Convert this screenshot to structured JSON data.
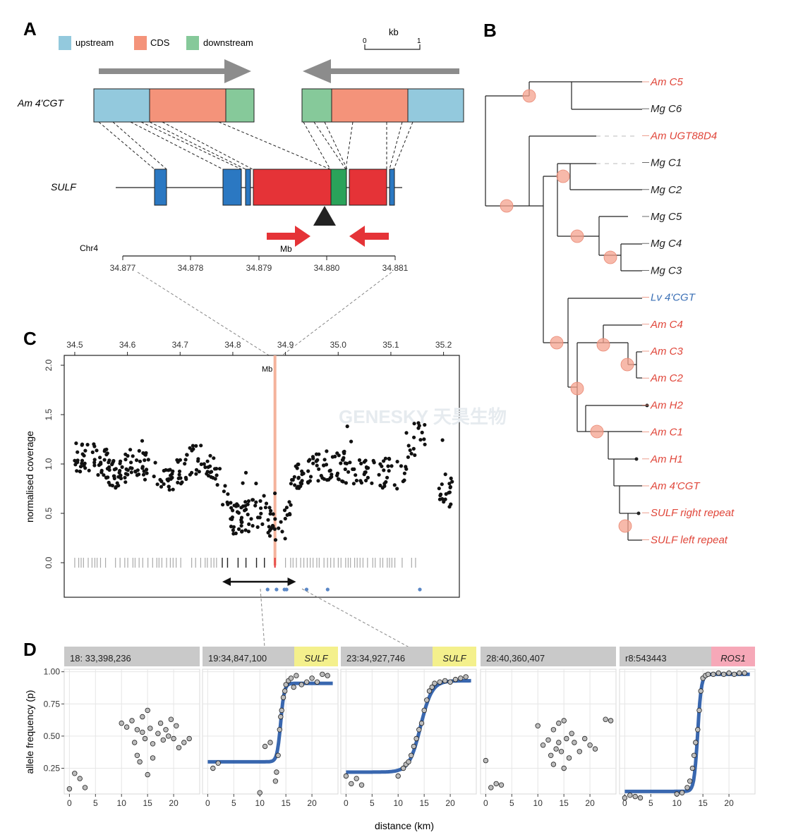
{
  "panels": {
    "a": "A",
    "b": "B",
    "c": "C",
    "d": "D"
  },
  "panelA": {
    "legend": [
      {
        "label": "upstream",
        "color": "#93c9dd"
      },
      {
        "label": "CDS",
        "color": "#f4937a"
      },
      {
        "label": "downstream",
        "color": "#86c99a"
      }
    ],
    "scalebar": {
      "title": "kb",
      "start": "0",
      "end": "1"
    },
    "gene_am": "Am 4'CGT",
    "gene_sulf": "SULF",
    "chrom_label": "Chr4",
    "axis_unit": "Mb",
    "axis_ticks": [
      "34.877",
      "34.878",
      "34.879",
      "34.880",
      "34.881"
    ]
  },
  "panelB": {
    "leaves": [
      {
        "label": "Am C5",
        "color": "#e0463a"
      },
      {
        "label": "Mg C6",
        "color": "#222222"
      },
      {
        "label": "Am UGT88D4",
        "color": "#e0463a"
      },
      {
        "label": "Mg C1",
        "color": "#222222"
      },
      {
        "label": "Mg C2",
        "color": "#222222"
      },
      {
        "label": "Mg C5",
        "color": "#222222"
      },
      {
        "label": "Mg C4",
        "color": "#222222"
      },
      {
        "label": "Mg C3",
        "color": "#222222"
      },
      {
        "label": "Lv 4'CGT",
        "color": "#3a6fb5"
      },
      {
        "label": "Am C4",
        "color": "#e0463a"
      },
      {
        "label": "Am C3",
        "color": "#e0463a"
      },
      {
        "label": "Am C2",
        "color": "#e0463a"
      },
      {
        "label": "Am H2",
        "color": "#e0463a"
      },
      {
        "label": "Am C1",
        "color": "#e0463a"
      },
      {
        "label": "Am H1",
        "color": "#e0463a"
      },
      {
        "label": "Am 4'CGT",
        "color": "#e0463a"
      },
      {
        "label": "SULF right repeat",
        "color": "#e0463a"
      },
      {
        "label": "SULF left repeat",
        "color": "#e0463a"
      }
    ]
  },
  "panelC": {
    "ylabel": "normalised coverage",
    "mb_label": "Mb",
    "watermark": "GENESKY 天昊生物"
  },
  "panelD": {
    "ylabel": "allele frequency (p)",
    "xlabel": "distance (km)",
    "facets": [
      {
        "title": "18: 33,398,236",
        "tag": "",
        "tag_color": ""
      },
      {
        "title": "19:34,847,100",
        "tag": "SULF",
        "tag_color": "#f4f08c"
      },
      {
        "title": "23:34,927,746",
        "tag": "SULF",
        "tag_color": "#f4f08c"
      },
      {
        "title": "28:40,360,407",
        "tag": "",
        "tag_color": ""
      },
      {
        "title": "r8:543443",
        "tag": "ROS1",
        "tag_color": "#f6a8b8"
      }
    ]
  },
  "chart_data": [
    {
      "type": "scatter",
      "x_axis_ticks": [
        34.5,
        34.6,
        34.7,
        34.8,
        34.9,
        35.0,
        35.1,
        35.2
      ],
      "xlim": [
        34.48,
        35.23
      ],
      "y_axis_ticks": [
        0.0,
        0.5,
        1.0,
        1.5,
        2.0
      ],
      "ylim": [
        -0.35,
        2.1
      ],
      "ylabel": "normalised coverage",
      "marker_x": 34.88,
      "marker_label": "Mb",
      "profile": {
        "x": [
          34.5,
          34.52,
          34.54,
          34.56,
          34.58,
          34.6,
          34.62,
          34.64,
          34.66,
          34.68,
          34.7,
          34.72,
          34.74,
          34.76,
          34.78,
          34.8,
          34.82,
          34.84,
          34.86,
          34.88,
          34.9,
          34.92,
          34.94,
          34.96,
          34.98,
          35.0,
          35.02,
          35.04,
          35.06,
          35.08,
          35.1,
          35.12,
          35.14,
          35.16,
          35.18,
          35.2,
          35.22
        ],
        "y": [
          1.05,
          1.1,
          1.05,
          1.0,
          0.85,
          1.0,
          1.05,
          0.95,
          0.9,
          0.85,
          0.9,
          1.05,
          1.05,
          1.0,
          0.75,
          0.45,
          0.45,
          0.5,
          0.55,
          0.3,
          0.4,
          0.9,
          0.95,
          0.95,
          1.0,
          1.0,
          0.95,
          0.95,
          0.9,
          0.9,
          0.9,
          0.9,
          1.2,
          1.45,
          0.8,
          0.75,
          0.7
        ]
      },
      "black_ticks_range": [
        34.78,
        34.86
      ],
      "grey_ticks_ranges": [
        [
          34.5,
          34.77
        ],
        [
          34.9,
          35.15
        ]
      ],
      "arrow_range": [
        34.78,
        34.92
      ],
      "blue_points_x": [
        34.866,
        34.883,
        34.898,
        34.902,
        34.94,
        34.98,
        35.155
      ]
    },
    {
      "type": "scatter",
      "facet": "18: 33,398,236",
      "xlim": [
        -1,
        25
      ],
      "ylim": [
        0.05,
        1.02
      ],
      "x_axis_ticks": [
        0,
        5,
        10,
        15,
        20
      ],
      "y_axis_ticks": [
        0.25,
        0.5,
        0.75,
        1.0
      ],
      "points": [
        [
          0,
          0.09
        ],
        [
          1,
          0.21
        ],
        [
          2,
          0.17
        ],
        [
          3,
          0.1
        ],
        [
          10,
          0.6
        ],
        [
          11,
          0.57
        ],
        [
          12,
          0.62
        ],
        [
          12.5,
          0.45
        ],
        [
          13,
          0.55
        ],
        [
          13,
          0.35
        ],
        [
          13.5,
          0.3
        ],
        [
          14,
          0.53
        ],
        [
          14,
          0.65
        ],
        [
          14.5,
          0.48
        ],
        [
          15,
          0.2
        ],
        [
          15,
          0.7
        ],
        [
          15.5,
          0.56
        ],
        [
          16,
          0.44
        ],
        [
          16,
          0.33
        ],
        [
          17,
          0.52
        ],
        [
          17.5,
          0.6
        ],
        [
          18,
          0.47
        ],
        [
          18.5,
          0.55
        ],
        [
          19,
          0.5
        ],
        [
          19.5,
          0.63
        ],
        [
          20,
          0.48
        ],
        [
          20.5,
          0.58
        ],
        [
          21,
          0.41
        ],
        [
          22,
          0.45
        ],
        [
          23,
          0.48
        ]
      ]
    },
    {
      "type": "scatter",
      "facet": "19:34,847,100",
      "xlim": [
        -1,
        25
      ],
      "ylim": [
        0.05,
        1.02
      ],
      "x_axis_ticks": [
        0,
        5,
        10,
        15,
        20
      ],
      "y_axis_ticks": [
        0.25,
        0.5,
        0.75,
        1.0
      ],
      "fit": {
        "low": 0.3,
        "high": 0.91,
        "mid": 14.0,
        "width": 0.35
      },
      "points": [
        [
          1,
          0.25
        ],
        [
          2,
          0.29
        ],
        [
          10,
          0.06
        ],
        [
          11,
          0.42
        ],
        [
          12,
          0.45
        ],
        [
          13,
          0.15
        ],
        [
          13.2,
          0.22
        ],
        [
          13.5,
          0.35
        ],
        [
          13.8,
          0.55
        ],
        [
          14,
          0.65
        ],
        [
          14.2,
          0.7
        ],
        [
          14.5,
          0.8
        ],
        [
          14.8,
          0.85
        ],
        [
          15,
          0.9
        ],
        [
          15.5,
          0.93
        ],
        [
          16,
          0.95
        ],
        [
          16.5,
          0.88
        ],
        [
          17,
          0.97
        ],
        [
          18,
          0.9
        ],
        [
          19,
          0.92
        ],
        [
          20,
          0.95
        ],
        [
          21,
          0.92
        ],
        [
          22,
          0.98
        ],
        [
          23,
          0.97
        ]
      ]
    },
    {
      "type": "scatter",
      "facet": "23:34,927,746",
      "xlim": [
        -1,
        25
      ],
      "ylim": [
        0.05,
        1.02
      ],
      "x_axis_ticks": [
        0,
        5,
        10,
        15,
        20
      ],
      "y_axis_ticks": [
        0.25,
        0.5,
        0.75,
        1.0
      ],
      "fit": {
        "low": 0.22,
        "high": 0.93,
        "mid": 14.3,
        "width": 1.1
      },
      "points": [
        [
          0,
          0.19
        ],
        [
          1,
          0.13
        ],
        [
          2,
          0.17
        ],
        [
          3,
          0.12
        ],
        [
          10,
          0.19
        ],
        [
          11,
          0.25
        ],
        [
          11.5,
          0.28
        ],
        [
          12,
          0.3
        ],
        [
          12.5,
          0.35
        ],
        [
          13,
          0.42
        ],
        [
          13.5,
          0.48
        ],
        [
          14,
          0.55
        ],
        [
          14.5,
          0.6
        ],
        [
          15,
          0.7
        ],
        [
          15.5,
          0.78
        ],
        [
          16,
          0.85
        ],
        [
          16.5,
          0.88
        ],
        [
          17,
          0.91
        ],
        [
          18,
          0.92
        ],
        [
          19,
          0.93
        ],
        [
          20,
          0.92
        ],
        [
          21,
          0.94
        ],
        [
          22,
          0.95
        ],
        [
          23,
          0.96
        ]
      ]
    },
    {
      "type": "scatter",
      "facet": "28:40,360,407",
      "xlim": [
        -1,
        25
      ],
      "ylim": [
        0.05,
        1.02
      ],
      "x_axis_ticks": [
        0,
        5,
        10,
        15,
        20
      ],
      "y_axis_ticks": [
        0.25,
        0.5,
        0.75,
        1.0
      ],
      "points": [
        [
          0,
          0.31
        ],
        [
          1,
          0.1
        ],
        [
          2,
          0.13
        ],
        [
          3,
          0.12
        ],
        [
          10,
          0.58
        ],
        [
          11,
          0.43
        ],
        [
          12,
          0.47
        ],
        [
          12.5,
          0.35
        ],
        [
          13,
          0.55
        ],
        [
          13,
          0.28
        ],
        [
          13.5,
          0.4
        ],
        [
          14,
          0.6
        ],
        [
          14,
          0.45
        ],
        [
          14.5,
          0.38
        ],
        [
          15,
          0.25
        ],
        [
          15,
          0.62
        ],
        [
          15.5,
          0.48
        ],
        [
          16,
          0.33
        ],
        [
          16.5,
          0.52
        ],
        [
          17,
          0.45
        ],
        [
          18,
          0.38
        ],
        [
          19,
          0.48
        ],
        [
          20,
          0.43
        ],
        [
          21,
          0.4
        ],
        [
          23,
          0.63
        ],
        [
          24,
          0.62
        ]
      ]
    },
    {
      "type": "scatter",
      "facet": "r8:543443",
      "xlim": [
        -1,
        25
      ],
      "ylim": [
        0.05,
        1.02
      ],
      "x_axis_ticks": [
        0,
        5,
        10,
        15,
        20
      ],
      "y_axis_ticks": [
        0.25,
        0.5,
        0.75,
        1.0
      ],
      "fit": {
        "low": 0.07,
        "high": 0.98,
        "mid": 14.0,
        "width": 0.35
      },
      "points": [
        [
          0,
          0.02
        ],
        [
          1,
          0.04
        ],
        [
          2,
          0.03
        ],
        [
          3,
          0.02
        ],
        [
          10,
          0.05
        ],
        [
          11,
          0.06
        ],
        [
          12,
          0.1
        ],
        [
          12.5,
          0.15
        ],
        [
          13,
          0.25
        ],
        [
          13.3,
          0.35
        ],
        [
          13.6,
          0.45
        ],
        [
          14,
          0.55
        ],
        [
          14.3,
          0.7
        ],
        [
          14.6,
          0.85
        ],
        [
          15,
          0.95
        ],
        [
          15.5,
          0.97
        ],
        [
          16,
          0.98
        ],
        [
          17,
          0.98
        ],
        [
          18,
          0.99
        ],
        [
          19,
          0.98
        ],
        [
          20,
          0.99
        ],
        [
          21,
          0.98
        ],
        [
          22,
          0.99
        ],
        [
          23,
          0.99
        ]
      ]
    }
  ]
}
